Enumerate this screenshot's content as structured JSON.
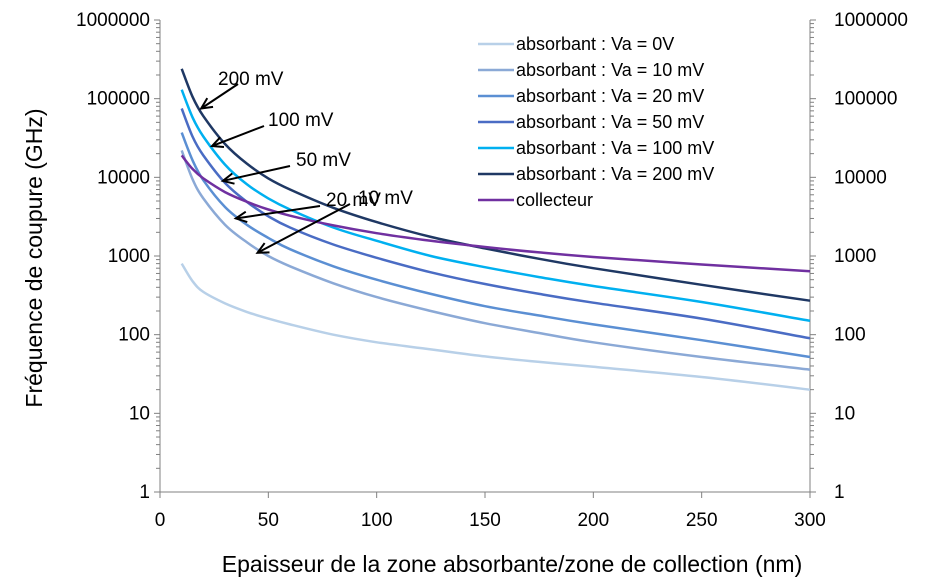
{
  "chart_data": {
    "type": "line",
    "xlabel": "Epaisseur de la zone absorbante/zone de collection (nm)",
    "ylabel": "Fréquence de coupure (GHz)",
    "xlim": [
      0,
      300
    ],
    "ylim": [
      1,
      1000000
    ],
    "yscale": "log",
    "secondary_y_axis": true,
    "grid": false,
    "legend_position": "top-right",
    "x_ticks": [
      "0",
      "50",
      "100",
      "150",
      "200",
      "250",
      "300"
    ],
    "y_ticks": [
      "1",
      "10",
      "100",
      "1000",
      "10000",
      "100000",
      "1000000"
    ],
    "x": [
      10,
      15,
      20,
      30,
      40,
      50,
      60,
      80,
      100,
      125,
      150,
      175,
      200,
      250,
      300
    ],
    "series": [
      {
        "name": "absorbant : Va = 0V",
        "color": "#b8d0e8",
        "values": [
          800,
          480,
          350,
          250,
          195,
          160,
          135,
          100,
          80,
          65,
          53,
          45,
          39,
          29,
          20
        ]
      },
      {
        "name": "absorbant : Va = 10 mV",
        "color": "#8ba9d6",
        "values": [
          22000,
          9500,
          5400,
          2500,
          1500,
          1000,
          740,
          450,
          300,
          200,
          140,
          105,
          80,
          52,
          36
        ]
      },
      {
        "name": "absorbant : Va = 20 mV",
        "color": "#5b8fd3",
        "values": [
          37000,
          16500,
          9200,
          4200,
          2500,
          1700,
          1220,
          740,
          500,
          330,
          230,
          175,
          135,
          85,
          52
        ]
      },
      {
        "name": "absorbant : Va = 50 mV",
        "color": "#4a6cc4",
        "values": [
          75000,
          33000,
          19000,
          8500,
          4900,
          3200,
          2300,
          1400,
          950,
          620,
          440,
          330,
          255,
          160,
          90
        ]
      },
      {
        "name": "absorbant : Va = 100 mV",
        "color": "#00b0f0",
        "values": [
          130000,
          58000,
          33000,
          14500,
          8200,
          5400,
          3900,
          2300,
          1560,
          1000,
          720,
          540,
          415,
          260,
          150
        ]
      },
      {
        "name": "absorbant : Va = 200 mV",
        "color": "#1f3864",
        "values": [
          240000,
          106000,
          60000,
          26500,
          15000,
          9700,
          7000,
          4100,
          2700,
          1750,
          1250,
          920,
          700,
          430,
          270
        ]
      },
      {
        "name": "collecteur",
        "color": "#7030a0",
        "values": [
          19000,
          12800,
          9700,
          6500,
          4900,
          3900,
          3250,
          2450,
          1950,
          1560,
          1300,
          1110,
          970,
          780,
          640
        ]
      }
    ],
    "annotations": [
      {
        "text": "200 mV",
        "x": 19,
        "y": 75000
      },
      {
        "text": "100 mV",
        "x": 24,
        "y": 25000
      },
      {
        "text": "50 mV",
        "x": 29,
        "y": 9000
      },
      {
        "text": "20 mV",
        "x": 35,
        "y": 3000
      },
      {
        "text": "10 mV",
        "x": 45,
        "y": 1100
      }
    ]
  }
}
